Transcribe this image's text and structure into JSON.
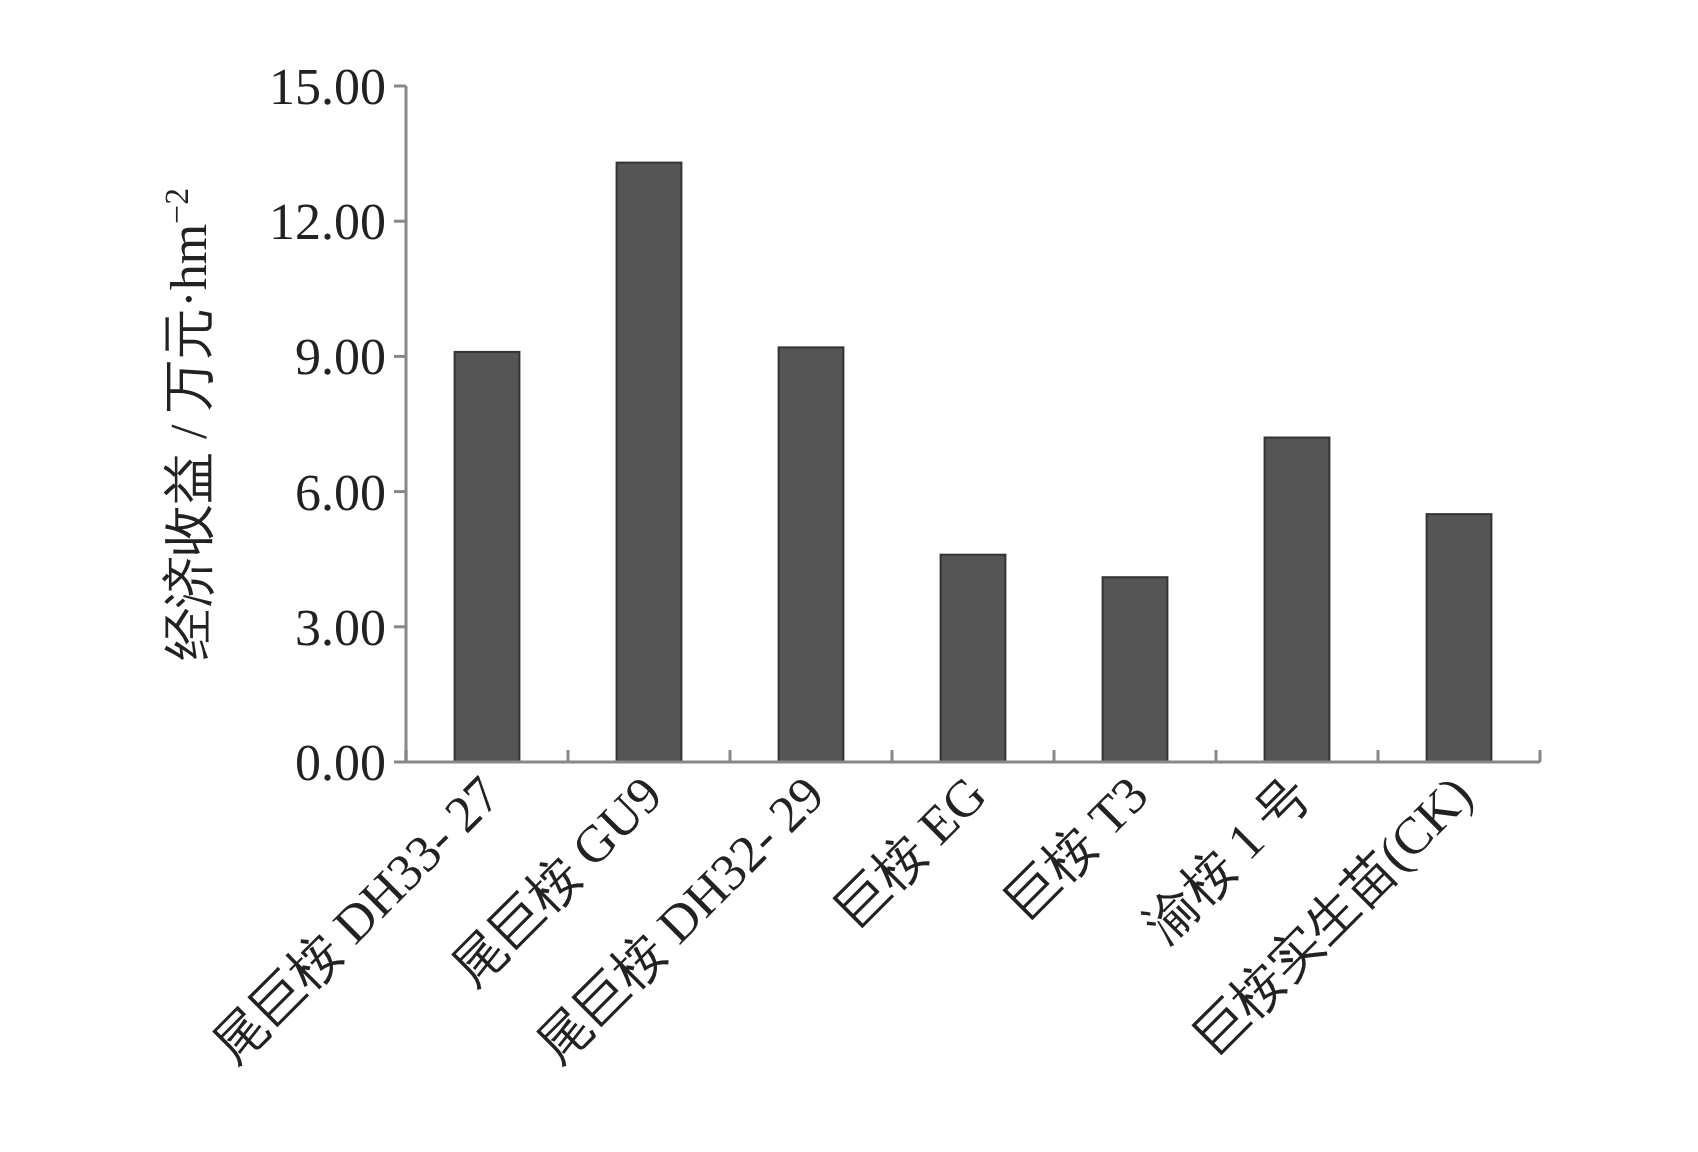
{
  "chart_data": {
    "type": "bar",
    "ylabel": "经济收益 / 万元·hm$^{−2}$",
    "categories": [
      "尾巨桉 DH33- 27",
      "尾巨桉 GU9",
      "尾巨桉 DH32- 29",
      "巨桉 EG",
      "巨桉 T3",
      "渝桉 1 号",
      "巨桉实生苗(CK)"
    ],
    "values": [
      9.1,
      13.3,
      9.2,
      4.6,
      4.1,
      7.2,
      5.5
    ],
    "color": "#555555",
    "ylim": [
      0,
      15
    ],
    "yticks": [
      {
        "value": 0,
        "label": "0.00"
      },
      {
        "value": 3,
        "label": "3.00"
      },
      {
        "value": 6,
        "label": "6.00"
      },
      {
        "value": 9,
        "label": "9.00"
      },
      {
        "value": 12,
        "label": "12.00"
      },
      {
        "value": 15,
        "label": "15.00"
      }
    ],
    "grid": false
  }
}
